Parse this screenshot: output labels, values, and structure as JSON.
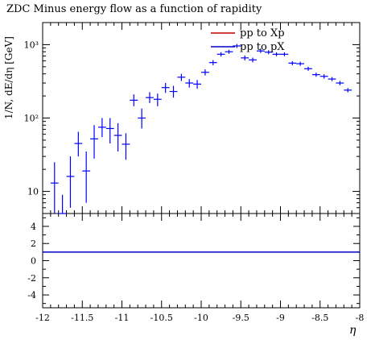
{
  "chart_data": {
    "title": "ZDC Minus energy flow as a function of rapidity",
    "xlabel": "η",
    "ylabel": "1/N, dE/dη [GeV]",
    "xlim": [
      -12,
      -8
    ],
    "main_yscale": "log",
    "main_ylim": [
      5,
      2000
    ],
    "main_yticks": [
      {
        "value": 10,
        "label": "10"
      },
      {
        "value": 100,
        "label": "10²"
      },
      {
        "value": 1000,
        "label": "10³"
      }
    ],
    "xticks": [
      {
        "value": -12,
        "label": "-12"
      },
      {
        "value": -11.5,
        "label": "-11.5"
      },
      {
        "value": -11,
        "label": "-11"
      },
      {
        "value": -10.5,
        "label": "-10.5"
      },
      {
        "value": -10,
        "label": "-10"
      },
      {
        "value": -9.5,
        "label": "-9.5"
      },
      {
        "value": -9,
        "label": "-9"
      },
      {
        "value": -8.5,
        "label": "-8.5"
      },
      {
        "value": -8,
        "label": "-8"
      }
    ],
    "ratio_ylim": [
      -5.5,
      5.5
    ],
    "ratio_yticks": [
      {
        "value": 4,
        "label": "4"
      },
      {
        "value": 2,
        "label": "2"
      },
      {
        "value": 0,
        "label": "0"
      },
      {
        "value": -2,
        "label": "-2"
      },
      {
        "value": -4,
        "label": "-4"
      }
    ],
    "ratio_line": 1,
    "legend": [
      {
        "label": "pp to Xp",
        "color": "#c00000"
      },
      {
        "label": "pp to pX",
        "color": "#0000cc"
      }
    ],
    "points": [
      {
        "x": -11.85,
        "y": 13,
        "lo": 5,
        "hi": 25
      },
      {
        "x": -11.75,
        "y": 5,
        "lo": 4,
        "hi": 9
      },
      {
        "x": -11.65,
        "y": 16,
        "lo": 6,
        "hi": 30
      },
      {
        "x": -11.55,
        "y": 45,
        "lo": 30,
        "hi": 65
      },
      {
        "x": -11.45,
        "y": 19,
        "lo": 7,
        "hi": 35
      },
      {
        "x": -11.35,
        "y": 52,
        "lo": 28,
        "hi": 80
      },
      {
        "x": -11.25,
        "y": 75,
        "lo": 55,
        "hi": 100
      },
      {
        "x": -11.15,
        "y": 72,
        "lo": 45,
        "hi": 100
      },
      {
        "x": -11.05,
        "y": 58,
        "lo": 35,
        "hi": 85
      },
      {
        "x": -10.95,
        "y": 44,
        "lo": 27,
        "hi": 62
      },
      {
        "x": -10.85,
        "y": 175,
        "lo": 145,
        "hi": 210
      },
      {
        "x": -10.75,
        "y": 100,
        "lo": 72,
        "hi": 135
      },
      {
        "x": -10.65,
        "y": 190,
        "lo": 160,
        "hi": 225
      },
      {
        "x": -10.55,
        "y": 180,
        "lo": 145,
        "hi": 215
      },
      {
        "x": -10.45,
        "y": 260,
        "lo": 220,
        "hi": 300
      },
      {
        "x": -10.35,
        "y": 230,
        "lo": 190,
        "hi": 275
      },
      {
        "x": -10.25,
        "y": 360,
        "lo": 320,
        "hi": 400
      },
      {
        "x": -10.15,
        "y": 300,
        "lo": 260,
        "hi": 340
      },
      {
        "x": -10.05,
        "y": 290,
        "lo": 250,
        "hi": 330
      },
      {
        "x": -9.95,
        "y": 420,
        "lo": 380,
        "hi": 460
      },
      {
        "x": -9.85,
        "y": 570,
        "lo": 525,
        "hi": 615
      },
      {
        "x": -9.75,
        "y": 740,
        "lo": 690,
        "hi": 790
      },
      {
        "x": -9.65,
        "y": 800,
        "lo": 750,
        "hi": 850
      },
      {
        "x": -9.55,
        "y": 960,
        "lo": 900,
        "hi": 1020
      },
      {
        "x": -9.45,
        "y": 660,
        "lo": 610,
        "hi": 710
      },
      {
        "x": -9.35,
        "y": 620,
        "lo": 575,
        "hi": 665
      },
      {
        "x": -9.25,
        "y": 820,
        "lo": 770,
        "hi": 870
      },
      {
        "x": -9.15,
        "y": 790,
        "lo": 740,
        "hi": 840
      },
      {
        "x": -9.05,
        "y": 740,
        "lo": 695,
        "hi": 785
      },
      {
        "x": -8.95,
        "y": 740,
        "lo": 695,
        "hi": 785
      },
      {
        "x": -8.85,
        "y": 560,
        "lo": 525,
        "hi": 595
      },
      {
        "x": -8.75,
        "y": 550,
        "lo": 515,
        "hi": 585
      },
      {
        "x": -8.65,
        "y": 470,
        "lo": 440,
        "hi": 500
      },
      {
        "x": -8.55,
        "y": 390,
        "lo": 365,
        "hi": 415
      },
      {
        "x": -8.45,
        "y": 370,
        "lo": 345,
        "hi": 395
      },
      {
        "x": -8.35,
        "y": 340,
        "lo": 318,
        "hi": 362
      },
      {
        "x": -8.25,
        "y": 300,
        "lo": 280,
        "hi": 320
      },
      {
        "x": -8.15,
        "y": 240,
        "lo": 224,
        "hi": 256
      }
    ],
    "point_color": "#0000ff"
  }
}
